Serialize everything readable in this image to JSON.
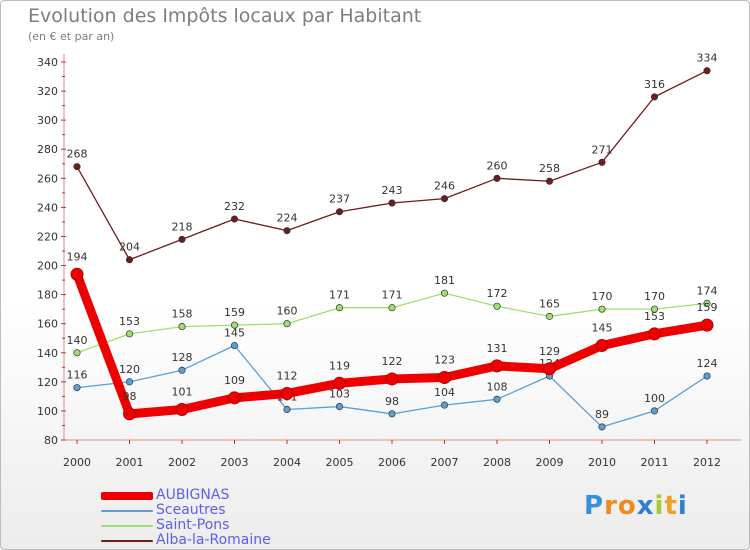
{
  "title": "Evolution des Impôts locaux par Habitant",
  "subtitle": "(en € et par an)",
  "chart_data": {
    "type": "line",
    "x": [
      "2000",
      "2001",
      "2002",
      "2003",
      "2004",
      "2005",
      "2006",
      "2007",
      "2008",
      "2009",
      "2010",
      "2011",
      "2012"
    ],
    "ylim": [
      80,
      340
    ],
    "yticks": [
      "80",
      "100",
      "120",
      "140",
      "160",
      "180",
      "200",
      "220",
      "240",
      "260",
      "280",
      "300",
      "320",
      "340"
    ],
    "grid": false,
    "series": [
      {
        "name": "AUBIGNAS",
        "color": "#ee0000",
        "values": [
          194,
          98,
          101,
          109,
          112,
          119,
          122,
          123,
          131,
          129,
          145,
          153,
          159
        ]
      },
      {
        "name": "Sceautres",
        "color": "#5a9fd6",
        "values": [
          116,
          120,
          128,
          145,
          101,
          103,
          98,
          104,
          108,
          124,
          89,
          100,
          124
        ]
      },
      {
        "name": "Saint-Pons",
        "color": "#9ee06d",
        "values": [
          140,
          153,
          158,
          159,
          160,
          171,
          171,
          181,
          172,
          165,
          170,
          170,
          174
        ]
      },
      {
        "name": "Alba-la-Romaine",
        "color": "#6e1c1c",
        "values": [
          268,
          204,
          218,
          232,
          224,
          237,
          243,
          246,
          260,
          258,
          271,
          316,
          334
        ]
      }
    ]
  },
  "legend": {
    "items": [
      {
        "label": "AUBIGNAS",
        "color": "#ee0000"
      },
      {
        "label": "Sceautres",
        "color": "#5a9fd6"
      },
      {
        "label": "Saint-Pons",
        "color": "#9ee06d"
      },
      {
        "label": "Alba-la-Romaine",
        "color": "#6e1c1c"
      }
    ]
  },
  "logo": {
    "letters": [
      "P",
      "r",
      "o",
      "x",
      "i",
      "t",
      "i"
    ],
    "colors": [
      "#3a8fd9",
      "#f08a1c",
      "#f08a1c",
      "#2f7fd2",
      "#a6c93c",
      "#f0a020",
      "#2f7fd2"
    ]
  }
}
